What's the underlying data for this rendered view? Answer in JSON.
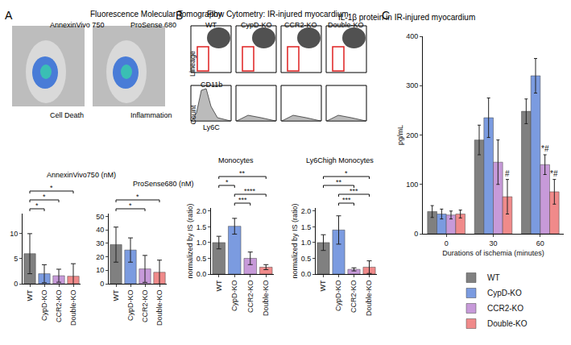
{
  "panels": [
    {
      "letter": "A",
      "title": "Fluorescence Molecular Tomography",
      "images": [
        {
          "label": "AnnexinVivo 750",
          "caption": "Cell Death"
        },
        {
          "label": "ProSense 680",
          "caption": "Inflammation"
        }
      ]
    },
    {
      "letter": "B",
      "title": "Flow Cytometry: IR-injured myocardium",
      "columns": [
        "WT",
        "CypD-KO",
        "CCR2-KO",
        "Double-KO"
      ],
      "dot_plot": {
        "y_label": "Lineage",
        "x_label": "CD11b"
      },
      "histogram": {
        "y_label": "Count",
        "x_label": "Ly6C"
      }
    },
    {
      "letter": "C"
    }
  ],
  "chart_data": [
    {
      "type": "bar",
      "title": "AnnexinVivo750 (nM)",
      "categories": [
        "WT",
        "CypD-KO",
        "CCR2-KO",
        "Double-KO"
      ],
      "values": [
        6.0,
        2.0,
        1.6,
        1.5
      ],
      "errors": [
        4.0,
        1.8,
        1.3,
        2.5
      ],
      "colors": [
        "#808080",
        "#7b9be0",
        "#c79ad9",
        "#f08a8a"
      ],
      "ylim": [
        0,
        14
      ],
      "yticks": [
        0,
        5,
        10
      ],
      "grid": false,
      "annotations": [
        {
          "from": "WT",
          "to": "CypD-KO",
          "label": "*"
        },
        {
          "from": "WT",
          "to": "CCR2-KO",
          "label": "*"
        },
        {
          "from": "WT",
          "to": "Double-KO",
          "label": "*"
        }
      ]
    },
    {
      "type": "bar",
      "title": "ProSense680 (nM)",
      "categories": [
        "WT",
        "CypD-KO",
        "CCR2-KO",
        "Double-KO"
      ],
      "values": [
        29,
        25,
        11,
        8.5
      ],
      "errors": [
        13,
        9,
        10,
        9
      ],
      "colors": [
        "#808080",
        "#7b9be0",
        "#c79ad9",
        "#f08a8a"
      ],
      "ylim": [
        0,
        52
      ],
      "yticks": [
        0,
        10,
        20,
        30,
        40,
        50
      ],
      "grid": false,
      "annotations": [
        {
          "from": "WT",
          "to": "CCR2-KO",
          "label": "*"
        },
        {
          "from": "WT",
          "to": "Double-KO",
          "label": "*"
        }
      ]
    },
    {
      "type": "bar",
      "title": "Monocytes",
      "y_label": "normalized by IS (ratio)",
      "categories": [
        "WT",
        "CypD-KO",
        "CCR2-KO",
        "Double-KO"
      ],
      "values": [
        1.0,
        1.52,
        0.5,
        0.22
      ],
      "errors": [
        0.2,
        0.25,
        0.2,
        0.08
      ],
      "colors": [
        "#808080",
        "#7b9be0",
        "#c79ad9",
        "#f08a8a"
      ],
      "ylim": [
        0,
        2.1
      ],
      "yticks": [
        {
          "value": 0,
          "label": "0.0"
        },
        0.5,
        {
          "value": 1,
          "label": "1.0"
        },
        1.5,
        {
          "value": 2,
          "label": "2.0"
        }
      ],
      "grid": false,
      "annotations": [
        {
          "from": "CypD-KO",
          "to": "CCR2-KO",
          "label": "***"
        },
        {
          "from": "CypD-KO",
          "to": "Double-KO",
          "label": "****"
        },
        {
          "from": "WT",
          "to": "CypD-KO",
          "label": "*"
        },
        {
          "from": "WT",
          "to": "Double-KO",
          "label": "**"
        }
      ]
    },
    {
      "type": "bar",
      "title": "Ly6Chigh Monocytes",
      "y_label": "normalized by IS (ratio)",
      "categories": [
        "WT",
        "CypD-KO",
        "CCR2-KO",
        "Double-KO"
      ],
      "values": [
        1.0,
        1.4,
        0.15,
        0.22
      ],
      "errors": [
        0.25,
        0.45,
        0.05,
        0.2
      ],
      "colors": [
        "#808080",
        "#7b9be0",
        "#c79ad9",
        "#f08a8a"
      ],
      "ylim": [
        0,
        2.1
      ],
      "yticks": [
        {
          "value": 0,
          "label": "0.0"
        },
        0.5,
        {
          "value": 1,
          "label": "1.0"
        },
        1.5,
        {
          "value": 2,
          "label": "2.0"
        }
      ],
      "grid": false,
      "annotations": [
        {
          "from": "CypD-KO",
          "to": "CCR2-KO",
          "label": "***"
        },
        {
          "from": "CypD-KO",
          "to": "Double-KO",
          "label": "***"
        },
        {
          "from": "WT",
          "to": "CCR2-KO",
          "label": "**"
        },
        {
          "from": "WT",
          "to": "Double-KO",
          "label": "*"
        }
      ]
    },
    {
      "type": "bar",
      "title": "IL-1β protein in IR-injured myocardium",
      "x_label": "Durations of ischemia (minutes)",
      "y_label": "pg/mL",
      "categories": [
        "0",
        "30",
        "60"
      ],
      "series": [
        {
          "name": "WT",
          "color": "#808080",
          "values": [
            45,
            190,
            248
          ],
          "errors": [
            12,
            30,
            25
          ]
        },
        {
          "name": "CypD-KO",
          "color": "#7b9be0",
          "values": [
            40,
            235,
            320
          ],
          "errors": [
            10,
            40,
            35
          ]
        },
        {
          "name": "CCR2-KO",
          "color": "#c79ad9",
          "values": [
            38,
            145,
            140
          ],
          "errors": [
            8,
            45,
            20
          ]
        },
        {
          "name": "Double-KO",
          "color": "#f08a8a",
          "values": [
            40,
            75,
            85
          ],
          "errors": [
            8,
            35,
            25
          ]
        }
      ],
      "ylim": [
        0,
        400
      ],
      "yticks": [
        0,
        100,
        200,
        300,
        400
      ],
      "grid": false,
      "legend": "bottom right",
      "annotations": [
        {
          "category": "30",
          "series": "Double-KO",
          "label": "#"
        },
        {
          "category": "60",
          "series": "CCR2-KO",
          "label": "*#"
        },
        {
          "category": "60",
          "series": "Double-KO",
          "label": "*#"
        }
      ]
    }
  ]
}
